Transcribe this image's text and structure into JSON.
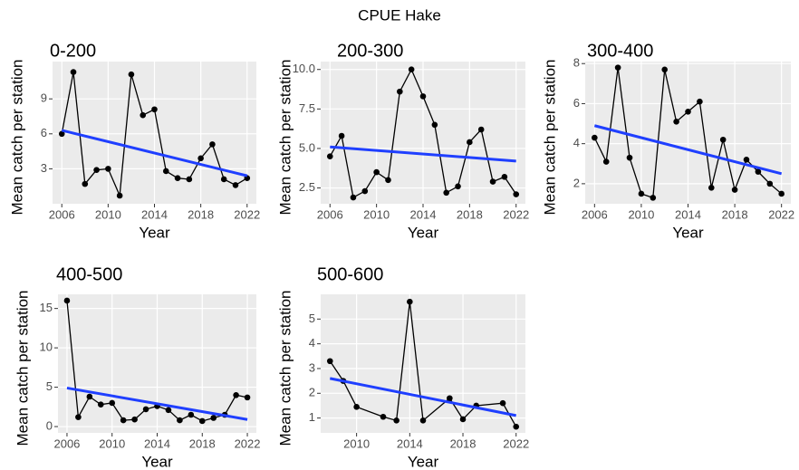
{
  "title": "CPUE Hake",
  "chart_data": [
    {
      "type": "line",
      "title": "0-200",
      "x_label": "Year",
      "y_label": "Mean catch per station",
      "x": [
        2006,
        2007,
        2008,
        2009,
        2010,
        2011,
        2012,
        2013,
        2014,
        2015,
        2016,
        2017,
        2018,
        2019,
        2020,
        2021,
        2022
      ],
      "series": [
        {
          "color": "#000000",
          "values": [
            6.0,
            11.3,
            1.7,
            2.9,
            3.0,
            0.7,
            11.1,
            7.6,
            8.1,
            2.8,
            2.2,
            2.1,
            3.9,
            5.1,
            2.1,
            1.6,
            2.2
          ]
        }
      ],
      "trend": {
        "color": "#1f3fff",
        "x": [
          2006,
          2022
        ],
        "values": [
          6.3,
          2.4
        ]
      },
      "xlim": [
        2005.2,
        2022.8
      ],
      "ylim": [
        0,
        12.2
      ],
      "xticks": [
        2006,
        2010,
        2014,
        2018,
        2022
      ],
      "yticks": [
        3,
        6,
        9
      ],
      "grid": true
    },
    {
      "type": "line",
      "title": "200-300",
      "x_label": "Year",
      "y_label": "Mean catch per station",
      "x": [
        2006,
        2007,
        2008,
        2009,
        2010,
        2011,
        2012,
        2013,
        2014,
        2015,
        2016,
        2017,
        2018,
        2019,
        2020,
        2021,
        2022
      ],
      "series": [
        {
          "color": "#000000",
          "values": [
            4.5,
            5.8,
            1.9,
            2.3,
            3.5,
            3.0,
            8.6,
            10.0,
            8.3,
            6.5,
            2.2,
            2.6,
            5.4,
            6.2,
            2.9,
            3.2,
            2.1
          ]
        }
      ],
      "trend": {
        "color": "#1f3fff",
        "x": [
          2006,
          2022
        ],
        "values": [
          5.1,
          4.2
        ]
      },
      "xlim": [
        2005.2,
        2022.8
      ],
      "ylim": [
        1.5,
        10.5
      ],
      "xticks": [
        2006,
        2010,
        2014,
        2018,
        2022
      ],
      "yticks": [
        2.5,
        {
          "value": 5,
          "label": "5.0"
        },
        7.5,
        {
          "value": 10,
          "label": "10.0"
        }
      ],
      "grid": true
    },
    {
      "type": "line",
      "title": "300-400",
      "x_label": "Year",
      "y_label": "Mean catch per station",
      "x": [
        2006,
        2007,
        2008,
        2009,
        2010,
        2011,
        2012,
        2013,
        2014,
        2015,
        2016,
        2017,
        2018,
        2019,
        2020,
        2021,
        2022
      ],
      "series": [
        {
          "color": "#000000",
          "values": [
            4.3,
            3.1,
            7.8,
            3.3,
            1.5,
            1.3,
            7.7,
            5.1,
            5.6,
            6.1,
            1.8,
            4.2,
            1.7,
            3.2,
            2.6,
            2.0,
            1.5
          ]
        }
      ],
      "trend": {
        "color": "#1f3fff",
        "x": [
          2006,
          2022
        ],
        "values": [
          4.9,
          2.5
        ]
      },
      "xlim": [
        2005.2,
        2022.8
      ],
      "ylim": [
        1.0,
        8.1
      ],
      "xticks": [
        2006,
        2010,
        2014,
        2018,
        2022
      ],
      "yticks": [
        2,
        4,
        6,
        8
      ],
      "grid": true
    },
    {
      "type": "line",
      "title": "400-500",
      "x_label": "Year",
      "y_label": "Mean catch per station",
      "x": [
        2006,
        2007,
        2008,
        2009,
        2010,
        2011,
        2012,
        2013,
        2014,
        2015,
        2016,
        2017,
        2018,
        2019,
        2020,
        2021,
        2022
      ],
      "series": [
        {
          "color": "#000000",
          "values": [
            16.0,
            1.2,
            3.8,
            2.8,
            3.0,
            0.8,
            0.9,
            2.2,
            2.6,
            2.1,
            0.8,
            1.5,
            0.7,
            1.1,
            1.5,
            4.0,
            3.7
          ]
        }
      ],
      "trend": {
        "color": "#1f3fff",
        "x": [
          2006,
          2022
        ],
        "values": [
          4.9,
          0.9
        ]
      },
      "xlim": [
        2005.2,
        2022.8
      ],
      "ylim": [
        -0.8,
        16.8
      ],
      "xticks": [
        2006,
        2010,
        2014,
        2018,
        2022
      ],
      "yticks": [
        0,
        5,
        10,
        15
      ],
      "grid": true
    },
    {
      "type": "line",
      "title": "500-600",
      "x_label": "Year",
      "y_label": "Mean catch per station",
      "x": [
        2008,
        2009,
        2010,
        2012,
        2013,
        2014,
        2015,
        2017,
        2018,
        2019,
        2021,
        2022
      ],
      "series": [
        {
          "color": "#000000",
          "values": [
            3.3,
            2.5,
            1.45,
            1.05,
            0.9,
            5.7,
            0.9,
            1.8,
            0.95,
            1.5,
            1.6,
            0.65
          ]
        }
      ],
      "trend": {
        "color": "#1f3fff",
        "x": [
          2008,
          2022
        ],
        "values": [
          2.6,
          1.1
        ]
      },
      "xlim": [
        2007.3,
        2022.7
      ],
      "ylim": [
        0.4,
        6.0
      ],
      "xticks": [
        2010,
        2014,
        2018,
        2022
      ],
      "yticks": [
        1,
        2,
        3,
        4,
        5
      ],
      "grid": true
    }
  ]
}
